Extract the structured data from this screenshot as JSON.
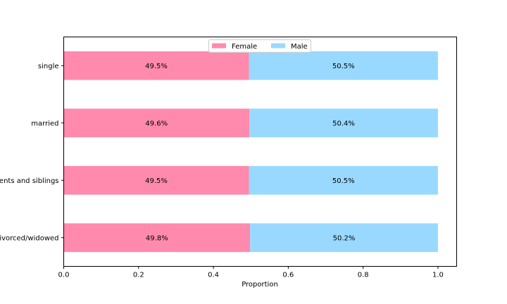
{
  "chart_data": {
    "type": "bar",
    "orientation": "horizontal",
    "stacked": true,
    "categories": [
      "single",
      "married",
      "with parents and siblings",
      "divorced/widowed"
    ],
    "series": [
      {
        "name": "Female",
        "values": [
          0.495,
          0.496,
          0.495,
          0.498
        ],
        "labels": [
          "49.5%",
          "49.6%",
          "49.5%",
          "49.8%"
        ],
        "color": "#ff8aad"
      },
      {
        "name": "Male",
        "values": [
          0.505,
          0.504,
          0.505,
          0.502
        ],
        "labels": [
          "50.5%",
          "50.4%",
          "50.5%",
          "50.2%"
        ],
        "color": "#99d9ff"
      }
    ],
    "xlabel": "Proportion",
    "ylabel": "",
    "xlim": [
      0.0,
      1.05
    ],
    "xticks": [
      "0.0",
      "0.2",
      "0.4",
      "0.6",
      "0.8",
      "1.0"
    ],
    "grid": false,
    "legend": "top-center"
  }
}
